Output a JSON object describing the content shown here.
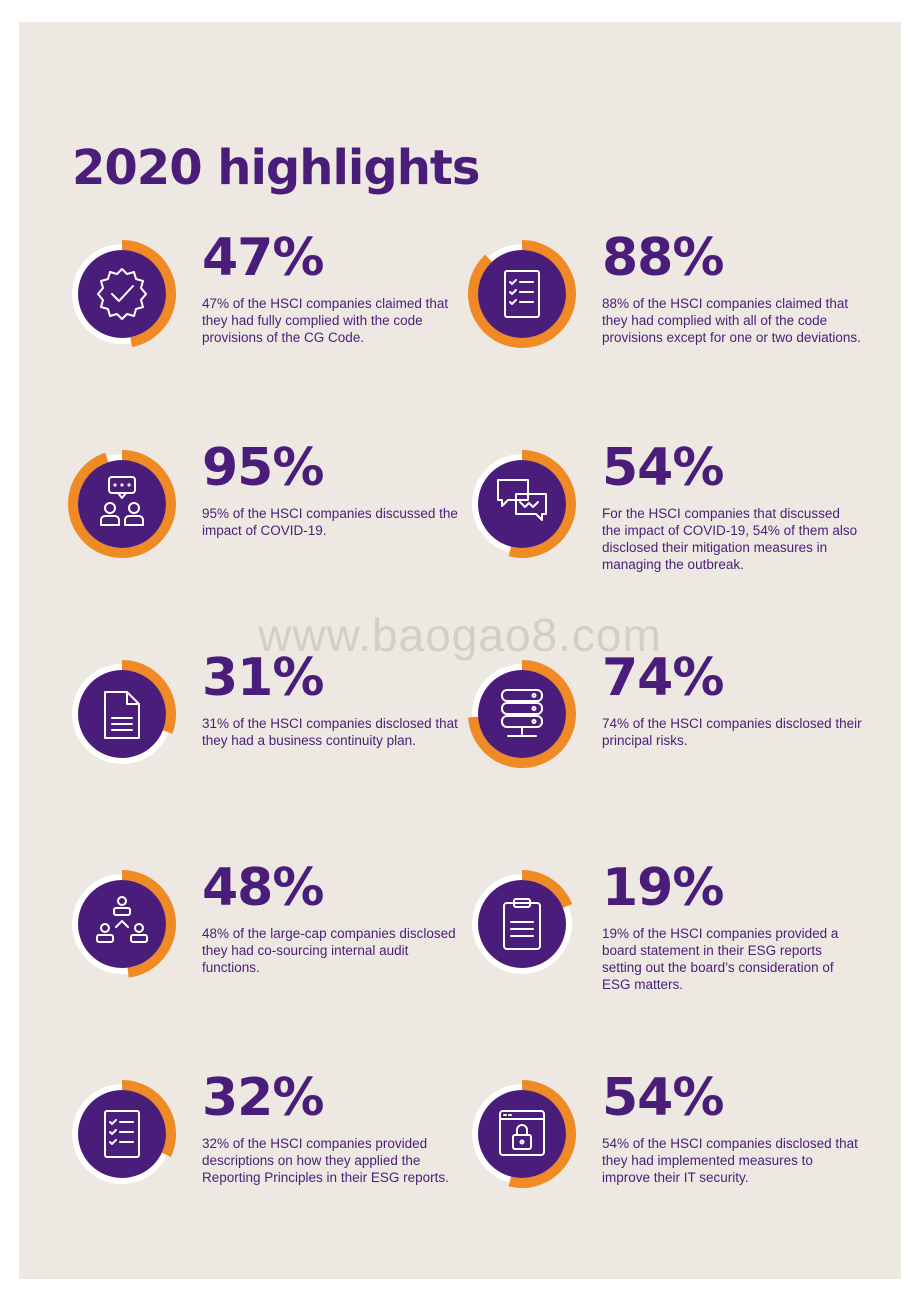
{
  "title": "2020 highlights",
  "watermark": "www.baogao8.com",
  "colors": {
    "purple": "#4b1d7a",
    "orange": "#f08a24",
    "background": "#ede8e1"
  },
  "stats": [
    {
      "value": "47%",
      "percent": 47,
      "icon": "certified-check-icon",
      "text": "47% of the HSCI companies claimed that they had fully complied with the code provisions of the CG Code."
    },
    {
      "value": "88%",
      "percent": 88,
      "icon": "checklist-icon",
      "text": "88% of the HSCI companies claimed that they had complied with all of the code provisions except for one or two deviations."
    },
    {
      "value": "95%",
      "percent": 95,
      "icon": "discussion-people-icon",
      "text": "95% of the HSCI companies discussed the impact of COVID-19."
    },
    {
      "value": "54%",
      "percent": 54,
      "icon": "chat-bubbles-icon",
      "text": "For the HSCI companies that discussed the impact of COVID-19, 54% of them also disclosed their mitigation measures in managing the outbreak."
    },
    {
      "value": "31%",
      "percent": 31,
      "icon": "document-icon",
      "text": "31% of the HSCI companies disclosed that they had a business continuity plan."
    },
    {
      "value": "74%",
      "percent": 74,
      "icon": "server-icon",
      "text": "74% of the HSCI companies disclosed their principal risks."
    },
    {
      "value": "48%",
      "percent": 48,
      "icon": "org-chart-icon",
      "text": "48% of the large-cap companies disclosed they had co-sourcing internal audit functions."
    },
    {
      "value": "19%",
      "percent": 19,
      "icon": "clipboard-icon",
      "text": "19% of the HSCI companies provided a board statement in their ESG reports setting out the board’s consideration of ESG matters."
    },
    {
      "value": "32%",
      "percent": 32,
      "icon": "checklist-icon",
      "text": "32% of the HSCI companies provided descriptions on how they applied the Reporting Principles in their ESG reports."
    },
    {
      "value": "54%",
      "percent": 54,
      "icon": "browser-lock-icon",
      "text": "54% of the HSCI companies disclosed that they had implemented measures to improve their IT security."
    }
  ]
}
